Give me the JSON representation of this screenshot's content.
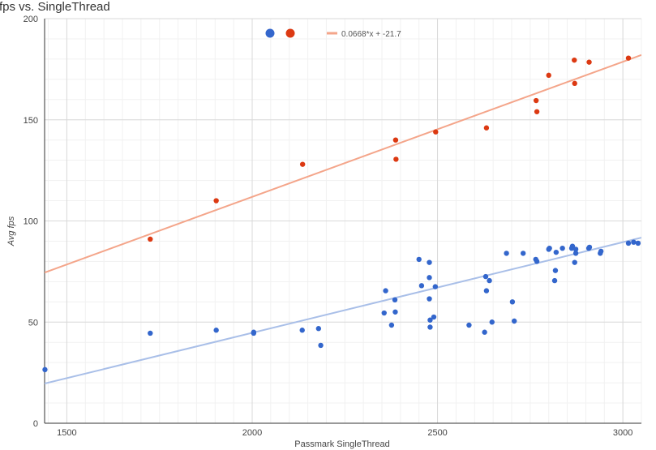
{
  "chart_data": {
    "type": "scatter",
    "title": "fps vs. SingleThread",
    "xlabel": "Passmark SingleThread",
    "ylabel": "Avg fps",
    "xlim": [
      1440,
      3050
    ],
    "ylim": [
      0,
      200
    ],
    "x_ticks": [
      1500,
      2000,
      2500,
      3000
    ],
    "y_ticks": [
      0,
      50,
      100,
      150,
      200
    ],
    "grid": true,
    "legend_position": "top",
    "legend": [
      {
        "name": "",
        "color": "#3366cc",
        "kind": "point"
      },
      {
        "name": "",
        "color": "#dc3912",
        "kind": "point"
      },
      {
        "name": "0.0668*x + -21.7",
        "color": "#f4a58a",
        "kind": "line"
      }
    ],
    "series": [
      {
        "name": "blue",
        "color": "#3366cc",
        "points": [
          [
            1441,
            26.5
          ],
          [
            1725,
            44.5
          ],
          [
            1903,
            46
          ],
          [
            2004,
            45
          ],
          [
            2004,
            44.5
          ],
          [
            2135,
            46
          ],
          [
            2179,
            46.8
          ],
          [
            2185,
            38.5
          ],
          [
            2356,
            54.5
          ],
          [
            2360,
            65.5
          ],
          [
            2376,
            48.5
          ],
          [
            2385,
            61
          ],
          [
            2386,
            55
          ],
          [
            2450,
            81
          ],
          [
            2457,
            68
          ],
          [
            2478,
            72
          ],
          [
            2478,
            79.5
          ],
          [
            2478,
            61.5
          ],
          [
            2480,
            51
          ],
          [
            2480,
            47.5
          ],
          [
            2490,
            52.5
          ],
          [
            2494,
            67.5
          ],
          [
            2585,
            48.5
          ],
          [
            2627,
            45
          ],
          [
            2630,
            72.5
          ],
          [
            2632,
            65.5
          ],
          [
            2640,
            70.5
          ],
          [
            2647,
            50
          ],
          [
            2686,
            84
          ],
          [
            2702,
            60
          ],
          [
            2707,
            50.5
          ],
          [
            2731,
            84
          ],
          [
            2765,
            81
          ],
          [
            2768,
            80
          ],
          [
            2800,
            86
          ],
          [
            2802,
            86.5
          ],
          [
            2816,
            70.5
          ],
          [
            2818,
            75.5
          ],
          [
            2820,
            84.5
          ],
          [
            2837,
            86.5
          ],
          [
            2862,
            86.5
          ],
          [
            2864,
            87.5
          ],
          [
            2870,
            79.5
          ],
          [
            2873,
            84
          ],
          [
            2873,
            86
          ],
          [
            2908,
            86.5
          ],
          [
            2910,
            87
          ],
          [
            2939,
            84
          ],
          [
            2941,
            85
          ],
          [
            3015,
            89
          ],
          [
            3029,
            89.5
          ],
          [
            3041,
            89
          ]
        ],
        "trendline": {
          "slope": 0.0448,
          "intercept": -44.9
        }
      },
      {
        "name": "red",
        "color": "#dc3912",
        "points": [
          [
            1725,
            91
          ],
          [
            1903,
            110
          ],
          [
            2136,
            128
          ],
          [
            2387,
            140
          ],
          [
            2388,
            130.5
          ],
          [
            2495,
            144
          ],
          [
            2632,
            146
          ],
          [
            2766,
            159.5
          ],
          [
            2768,
            154
          ],
          [
            2800,
            172
          ],
          [
            2869,
            179.5
          ],
          [
            2870,
            168
          ],
          [
            2909,
            178.5
          ],
          [
            3015,
            180.5
          ]
        ],
        "trendline": {
          "slope": 0.0668,
          "intercept": -21.7
        }
      }
    ]
  }
}
